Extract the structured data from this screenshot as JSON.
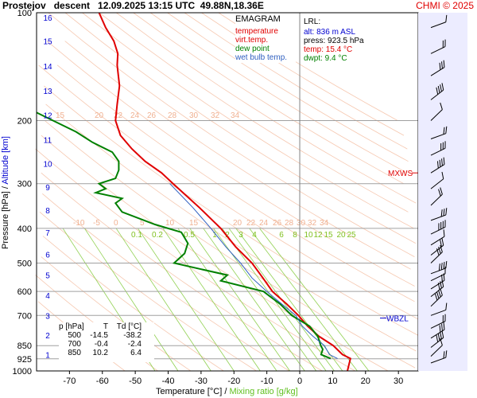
{
  "header": {
    "title": "Prostejov   descent   12.09.2025 13:15 UTC  49.88N,18.36E",
    "copyright": "CHMI © 2025"
  },
  "legend": {
    "heading": "EMAGRAM",
    "items": [
      {
        "label": "temperature",
        "color": "#e00000"
      },
      {
        "label": "virt.temp.",
        "color": "#e00000"
      },
      {
        "label": "dew point",
        "color": "#008000"
      },
      {
        "label": "wet bulb temp.",
        "color": "#3060c0"
      }
    ]
  },
  "lrl": {
    "heading": "LRL:",
    "alt": "alt: 836 m ASL",
    "press": "press: 923.5 hPa",
    "temp": "temp: 15.4 °C",
    "dwpt": "dwpt: 9.4 °C",
    "alt_color": "#0000d0",
    "press_color": "#000000",
    "temp_color": "#e00000",
    "dwpt_color": "#008000"
  },
  "stats": {
    "headers": [
      "p [hPa]",
      "T",
      "Td [°C]"
    ],
    "rows": [
      [
        "500",
        "-14.5",
        "-38.2"
      ],
      [
        "700",
        "-0.4",
        "-2.4"
      ],
      [
        "850",
        "10.2",
        "6.4"
      ]
    ]
  },
  "annotations": {
    "mxws": "MXWS",
    "mxws_color": "#e00000",
    "wbzl": "WBZL",
    "wbzl_color": "#0000d0"
  },
  "axes": {
    "xlabel_temp": "Temperature [°C]",
    "xlabel_sep": " / ",
    "xlabel_mix": "Mixing ratio [g/kg]",
    "xlabel_mix_color": "#60c020",
    "ylabel_press": "Pressure [hPa]",
    "ylabel_sep": " / ",
    "ylabel_alt": "Altitude [km]",
    "ylabel_alt_color": "#0000d0"
  },
  "chart_data": {
    "type": "line",
    "chart_kind": "emagram",
    "x_range": [
      -80,
      36
    ],
    "y_scale": "log-pressure",
    "y_range_hpa": [
      1000,
      100
    ],
    "x_ticks": [
      -70,
      -60,
      -50,
      -40,
      -30,
      -20,
      -10,
      0,
      10,
      20,
      30
    ],
    "y_ticks_hpa": [
      100,
      200,
      300,
      400,
      500,
      600,
      700,
      850,
      925,
      1000
    ],
    "altitude_ticks_km": [
      1,
      2,
      3,
      4,
      5,
      6,
      7,
      8,
      9,
      10,
      11,
      12,
      13,
      14,
      15,
      16
    ],
    "altitude_ticks_hpa": [
      900,
      795,
      700,
      615,
      540,
      472,
      410,
      356,
      307,
      264,
      226,
      193,
      165,
      141,
      120,
      103
    ],
    "mixing_ratio_labels": [
      "0.1",
      "0.2",
      "0.5",
      "1",
      "2",
      "3",
      "4",
      "6",
      "8",
      "10",
      "12",
      "15",
      "20",
      "25"
    ],
    "mixing_ratio_label_color": "#80c020",
    "mixing_ratio_line_temps_at_1000": [
      -44,
      -37,
      -27,
      -20,
      -12,
      -7,
      -3,
      1.5,
      5,
      8,
      10.5,
      13,
      17.5,
      21
    ],
    "dry_adiabat_labels_lower": [
      "-10",
      "-5",
      "0",
      "5",
      "10",
      "15",
      "20",
      "22",
      "24",
      "26",
      "28",
      "30",
      "32",
      "34"
    ],
    "dry_adiabat_labels_upper": [
      "15",
      "20",
      "22",
      "24",
      "26",
      "28",
      "30",
      "32",
      "34"
    ],
    "adiabat_label_color": "#f0b090",
    "series": [
      {
        "name": "temperature",
        "color": "#e00000",
        "points": [
          [
            1000,
            14.5
          ],
          [
            923.5,
            15.4
          ],
          [
            900,
            13.0
          ],
          [
            850,
            10.2
          ],
          [
            800,
            5.8
          ],
          [
            750,
            2.4
          ],
          [
            700,
            -0.4
          ],
          [
            650,
            -4.0
          ],
          [
            600,
            -8.3
          ],
          [
            550,
            -11.2
          ],
          [
            500,
            -14.5
          ],
          [
            450,
            -19.5
          ],
          [
            400,
            -24.0
          ],
          [
            350,
            -30.5
          ],
          [
            300,
            -38.5
          ],
          [
            280,
            -42.0
          ],
          [
            260,
            -47.0
          ],
          [
            240,
            -51.0
          ],
          [
            220,
            -54.5
          ],
          [
            200,
            -56.0
          ],
          [
            180,
            -55.5
          ],
          [
            160,
            -54.8
          ],
          [
            140,
            -55.5
          ],
          [
            130,
            -55.3
          ],
          [
            120,
            -56.5
          ],
          [
            110,
            -59.0
          ],
          [
            100,
            -61.0
          ]
        ]
      },
      {
        "name": "dew point",
        "color": "#008000",
        "points": [
          [
            923.5,
            9.4
          ],
          [
            900,
            6.5
          ],
          [
            870,
            7.0
          ],
          [
            850,
            6.4
          ],
          [
            800,
            5.5
          ],
          [
            750,
            3.0
          ],
          [
            700,
            -2.4
          ],
          [
            650,
            -6.0
          ],
          [
            620,
            -9.0
          ],
          [
            600,
            -11.0
          ],
          [
            560,
            -24.0
          ],
          [
            540,
            -22.0
          ],
          [
            520,
            -30.0
          ],
          [
            500,
            -38.2
          ],
          [
            470,
            -35.0
          ],
          [
            440,
            -34.0
          ],
          [
            410,
            -36.0
          ],
          [
            390,
            -44.0
          ],
          [
            360,
            -54.0
          ],
          [
            340,
            -56.0
          ],
          [
            330,
            -54.0
          ],
          [
            318,
            -62.0
          ],
          [
            310,
            -59.0
          ],
          [
            300,
            -61.0
          ],
          [
            290,
            -56.0
          ],
          [
            275,
            -55.0
          ],
          [
            260,
            -55.0
          ],
          [
            245,
            -57.0
          ],
          [
            230,
            -63.0
          ],
          [
            215,
            -68.0
          ],
          [
            200,
            -75.0
          ],
          [
            190,
            -80.0
          ]
        ]
      },
      {
        "name": "wet bulb temp.",
        "color": "#3060c0",
        "points": [
          [
            923.5,
            11.5
          ],
          [
            900,
            9.0
          ],
          [
            850,
            7.5
          ],
          [
            800,
            4.0
          ],
          [
            750,
            0.8
          ],
          [
            700,
            -1.2
          ],
          [
            650,
            -5.5
          ],
          [
            600,
            -10.0
          ],
          [
            550,
            -14.5
          ],
          [
            500,
            -18.0
          ],
          [
            450,
            -22.5
          ],
          [
            400,
            -27.0
          ],
          [
            350,
            -32.5
          ],
          [
            300,
            -39.5
          ]
        ]
      }
    ],
    "wind_barbs_hpa": [
      110,
      130,
      150,
      175,
      200,
      225,
      250,
      280,
      310,
      345,
      380,
      415,
      445,
      475,
      500,
      535,
      560,
      590,
      620,
      660,
      700,
      760,
      810,
      860,
      910,
      950
    ],
    "mxws_level_hpa": 280,
    "wbzl_level_hpa": 712
  }
}
